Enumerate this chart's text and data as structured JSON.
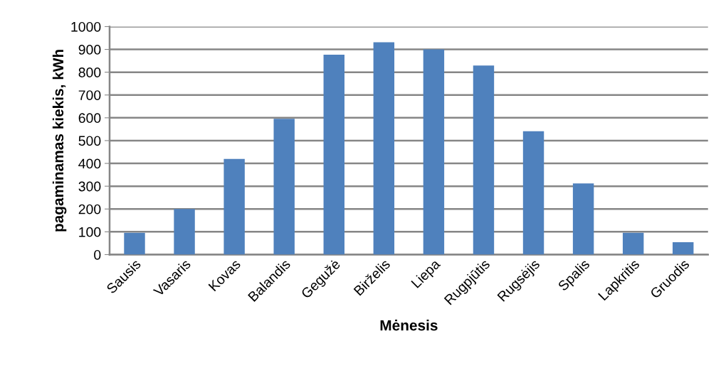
{
  "chart_data": {
    "type": "bar",
    "xlabel": "Mėnesis",
    "ylabel": "pagaminamas kiekis, kWh",
    "categories": [
      "Sausis",
      "Vasaris",
      "Kovas",
      "Balandis",
      "Gegužė",
      "Birželis",
      "Liepa",
      "Rugpjūtis",
      "Rugsėjis",
      "Spalis",
      "Lapkritis",
      "Gruodis"
    ],
    "values": [
      96,
      200,
      420,
      596,
      877,
      931,
      900,
      829,
      541,
      312,
      96,
      54
    ],
    "color": "#4f81bd",
    "ylim": [
      0,
      1000
    ],
    "yticks": [
      0,
      100,
      200,
      300,
      400,
      500,
      600,
      700,
      800,
      900,
      1000
    ],
    "grid": "y",
    "legend": false
  }
}
